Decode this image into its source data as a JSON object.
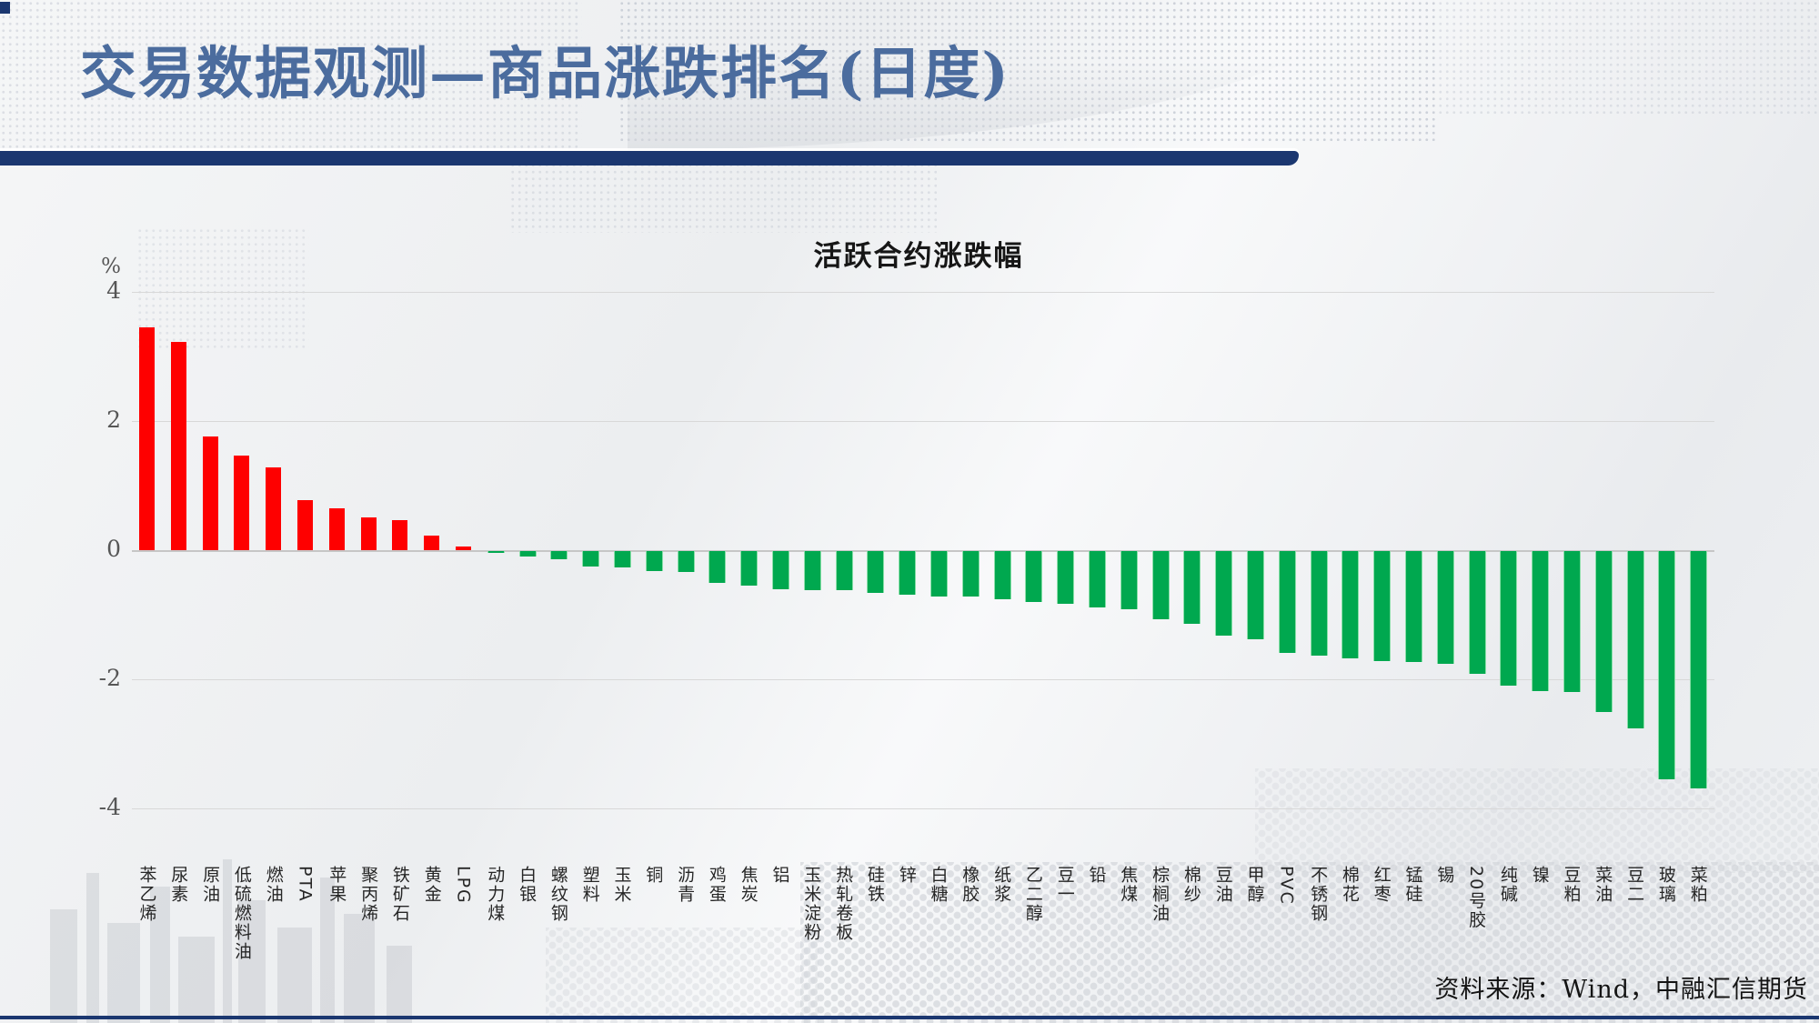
{
  "slide": {
    "title": "交易数据观测—商品涨跌排名(日度)",
    "source": "资料来源：Wind，中融汇信期货"
  },
  "colors": {
    "accent_navy": "#1b3770",
    "title_blue": "#4b6c9e",
    "positive_bar_red": "#fe0000",
    "negative_bar_green": "#00a84f"
  },
  "chart_data": {
    "type": "bar",
    "title": "活跃合约涨跌幅",
    "ylabel": "%",
    "ylim": [
      -4,
      4
    ],
    "yticks": [
      4,
      2,
      0,
      -2,
      -4
    ],
    "grid": "horizontal",
    "legend": "none",
    "categories": [
      "苯乙烯",
      "尿素",
      "原油",
      "低硫燃料油",
      "燃油",
      "PTA",
      "苹果",
      "聚丙烯",
      "铁矿石",
      "黄金",
      "LPG",
      "动力煤",
      "白银",
      "螺纹钢",
      "塑料",
      "玉米",
      "铜",
      "沥青",
      "鸡蛋",
      "焦炭",
      "铝",
      "玉米淀粉",
      "热轧卷板",
      "硅铁",
      "锌",
      "白糖",
      "橡胶",
      "纸浆",
      "乙二醇",
      "豆一",
      "铅",
      "焦煤",
      "棕榈油",
      "棉纱",
      "豆油",
      "甲醇",
      "PVC",
      "不锈钢",
      "棉花",
      "红枣",
      "锰硅",
      "锡",
      "20号胶",
      "纯碱",
      "镍",
      "豆粕",
      "菜油",
      "豆二",
      "玻璃",
      "菜粕"
    ],
    "values": [
      3.45,
      3.22,
      1.76,
      1.46,
      1.28,
      0.77,
      0.65,
      0.51,
      0.46,
      0.22,
      0.05,
      -0.02,
      -0.09,
      -0.13,
      -0.24,
      -0.26,
      -0.31,
      -0.32,
      -0.49,
      -0.53,
      -0.59,
      -0.61,
      -0.61,
      -0.65,
      -0.68,
      -0.7,
      -0.71,
      -0.74,
      -0.79,
      -0.82,
      -0.87,
      -0.9,
      -1.05,
      -1.13,
      -1.31,
      -1.37,
      -1.58,
      -1.62,
      -1.66,
      -1.7,
      -1.72,
      -1.75,
      -1.9,
      -2.08,
      -2.17,
      -2.18,
      -2.49,
      -2.74,
      -3.53,
      -3.67
    ]
  }
}
